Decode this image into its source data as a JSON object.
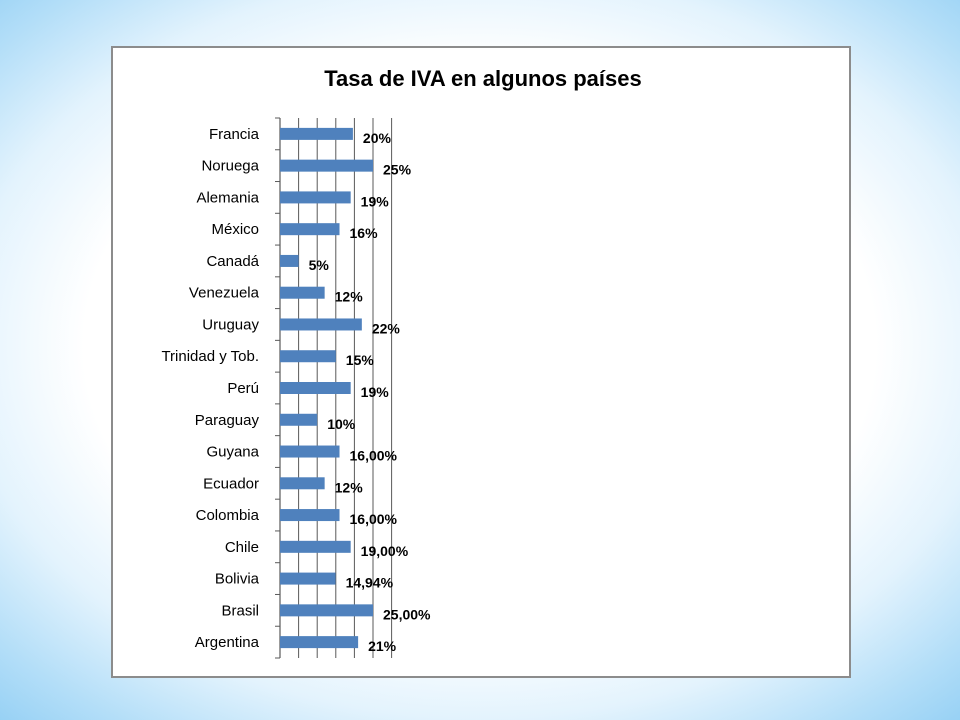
{
  "colors": {
    "bar": "#4f81bd",
    "grid": "#595959",
    "frame": "#8c8c8c"
  },
  "chart_data": {
    "type": "bar",
    "orientation": "horizontal",
    "title": "Tasa de IVA en algunos países",
    "xlabel": "",
    "ylabel": "",
    "xlim": [
      0,
      30
    ],
    "grid": true,
    "legend": "none",
    "categories": [
      "Francia",
      "Noruega",
      "Alemania",
      "México",
      "Canadá",
      "Venezuela",
      "Uruguay",
      "Trinidad y Tob.",
      "Perú",
      "Paraguay",
      "Guyana",
      "Ecuador",
      "Colombia",
      "Chile",
      "Bolivia",
      "Brasil",
      "Argentina"
    ],
    "values": [
      19.6,
      25,
      19,
      16,
      5,
      12,
      22,
      15,
      19,
      10,
      16,
      12,
      16,
      19,
      14.94,
      25,
      21
    ],
    "data_labels": [
      "20%",
      "25%",
      "19%",
      "16%",
      "5%",
      "12%",
      "22%",
      "15%",
      "19%",
      "10%",
      "16,00%",
      "12%",
      "16,00%",
      "19,00%",
      "14,94%",
      "25,00%",
      "21%"
    ]
  }
}
